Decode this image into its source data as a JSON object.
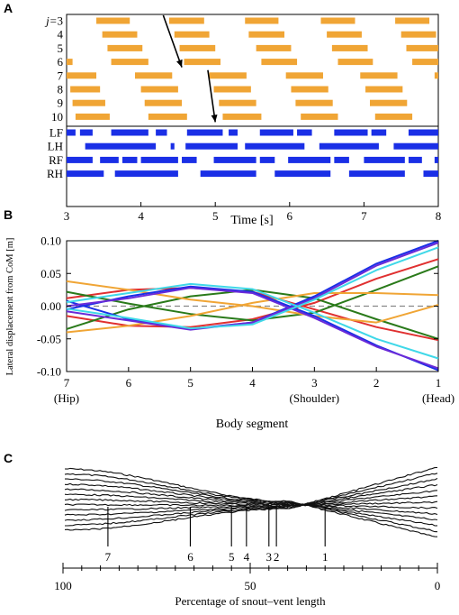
{
  "panel_labels": {
    "a": "A",
    "b": "B",
    "c": "C"
  },
  "chart_data": [
    {
      "type": "gait-diagram",
      "panel": "A",
      "xlabel": "Time [s]",
      "xlim": [
        3,
        8
      ],
      "xticks": [
        "3",
        "4",
        "5",
        "6",
        "7",
        "8"
      ],
      "segment_label_prefix": "j=",
      "segment_rows": [
        "3",
        "4",
        "5",
        "6",
        "7",
        "8",
        "9",
        "10"
      ],
      "segment_color": "#f0a535",
      "segments": [
        {
          "row": "3",
          "bars": [
            [
              3.4,
              3.85
            ],
            [
              4.38,
              4.85
            ],
            [
              5.4,
              5.85
            ],
            [
              6.42,
              6.88
            ],
            [
              7.42,
              7.88
            ]
          ]
        },
        {
          "row": "4",
          "bars": [
            [
              3.48,
              3.95
            ],
            [
              4.45,
              4.92
            ],
            [
              5.45,
              5.93
            ],
            [
              6.5,
              6.97
            ],
            [
              7.5,
              7.97
            ]
          ]
        },
        {
          "row": "5",
          "bars": [
            [
              3.55,
              4.02
            ],
            [
              4.52,
              5.0
            ],
            [
              5.55,
              6.02
            ],
            [
              6.57,
              7.05
            ],
            [
              7.57,
              8.0
            ]
          ]
        },
        {
          "row": "6",
          "bars": [
            [
              3.0,
              3.08
            ],
            [
              3.6,
              4.1
            ],
            [
              4.58,
              5.07
            ],
            [
              5.62,
              6.1
            ],
            [
              6.65,
              7.12
            ],
            [
              7.65,
              8.0
            ]
          ]
        },
        {
          "row": "7",
          "bars": [
            [
              3.0,
              3.4
            ],
            [
              3.92,
              4.42
            ],
            [
              4.92,
              5.42
            ],
            [
              5.95,
              6.45
            ],
            [
              6.95,
              7.45
            ],
            [
              7.95,
              8.0
            ]
          ]
        },
        {
          "row": "8",
          "bars": [
            [
              3.05,
              3.45
            ],
            [
              4.0,
              4.5
            ],
            [
              4.98,
              5.48
            ],
            [
              6.02,
              6.52
            ],
            [
              7.02,
              7.52
            ]
          ]
        },
        {
          "row": "9",
          "bars": [
            [
              3.08,
              3.52
            ],
            [
              4.05,
              4.55
            ],
            [
              5.05,
              5.55
            ],
            [
              6.08,
              6.58
            ],
            [
              7.08,
              7.58
            ]
          ]
        },
        {
          "row": "10",
          "bars": [
            [
              3.12,
              3.58
            ],
            [
              4.1,
              4.62
            ],
            [
              5.1,
              5.62
            ],
            [
              6.15,
              6.65
            ],
            [
              7.15,
              7.65
            ]
          ]
        }
      ],
      "leg_rows": [
        "LF",
        "LH",
        "RF",
        "RH"
      ],
      "leg_color": "#1a2fe6",
      "legs": [
        {
          "row": "LF",
          "bars": [
            [
              3.0,
              3.12
            ],
            [
              3.18,
              3.35
            ],
            [
              3.6,
              4.1
            ],
            [
              4.2,
              4.35
            ],
            [
              4.62,
              5.1
            ],
            [
              5.18,
              5.3
            ],
            [
              5.6,
              6.05
            ],
            [
              6.1,
              6.3
            ],
            [
              6.6,
              7.05
            ],
            [
              7.1,
              7.3
            ],
            [
              7.6,
              8.0
            ]
          ]
        },
        {
          "row": "LH",
          "bars": [
            [
              3.25,
              4.2
            ],
            [
              4.4,
              4.45
            ],
            [
              4.6,
              5.3
            ],
            [
              5.4,
              6.2
            ],
            [
              6.4,
              7.2
            ],
            [
              7.4,
              8.0
            ]
          ]
        },
        {
          "row": "RF",
          "bars": [
            [
              3.0,
              3.35
            ],
            [
              3.45,
              3.7
            ],
            [
              3.75,
              3.95
            ],
            [
              4.0,
              4.5
            ],
            [
              4.55,
              4.75
            ],
            [
              4.98,
              5.55
            ],
            [
              5.6,
              5.8
            ],
            [
              5.98,
              6.55
            ],
            [
              6.6,
              6.8
            ],
            [
              7.0,
              7.55
            ],
            [
              7.6,
              7.78
            ],
            [
              7.95,
              8.0
            ]
          ]
        },
        {
          "row": "RH",
          "bars": [
            [
              3.0,
              3.5
            ],
            [
              3.65,
              4.5
            ],
            [
              4.8,
              5.55
            ],
            [
              5.8,
              6.55
            ],
            [
              6.8,
              7.55
            ],
            [
              7.8,
              8.0
            ]
          ]
        }
      ],
      "arrows": [
        {
          "from": [
            4.3,
            "3"
          ],
          "to": [
            4.55,
            "6"
          ]
        },
        {
          "from": [
            4.9,
            "7"
          ],
          "to": [
            5.0,
            "10"
          ]
        }
      ]
    },
    {
      "type": "line",
      "panel": "B",
      "ylabel": "Lateral displacement from CoM [m]",
      "xlabel": "Body segment",
      "x": [
        7,
        6,
        5,
        4,
        3,
        2,
        1
      ],
      "xlim": [
        7,
        1
      ],
      "ylim": [
        -0.1,
        0.1
      ],
      "yticks": [
        "0.10",
        "0.05",
        "0.00",
        "-0.05",
        "-0.10"
      ],
      "ytick_values": [
        0.1,
        0.05,
        0.0,
        -0.05,
        -0.1
      ],
      "xticks": [
        "7",
        "6",
        "5",
        "4",
        "3",
        "2",
        "1"
      ],
      "xtick_sublabels": {
        "7": "(Hip)",
        "3": "(Shoulder)",
        "1": "(Head)"
      },
      "zero_line": "dashed",
      "series": [
        {
          "color": "#e03030",
          "values": [
            0.012,
            0.025,
            0.028,
            0.022,
            -0.005,
            -0.032,
            -0.052
          ]
        },
        {
          "color": "#e03030",
          "values": [
            -0.015,
            -0.03,
            -0.032,
            -0.02,
            0.005,
            0.042,
            0.072
          ]
        },
        {
          "color": "#2a7a1a",
          "values": [
            -0.035,
            -0.005,
            0.015,
            0.025,
            0.012,
            -0.02,
            -0.05
          ]
        },
        {
          "color": "#2a7a1a",
          "values": [
            0.022,
            0.004,
            -0.012,
            -0.022,
            -0.01,
            0.025,
            0.061
          ]
        },
        {
          "color": "#f0a535",
          "values": [
            0.038,
            0.025,
            0.01,
            0.0,
            -0.015,
            -0.025,
            0.002
          ]
        },
        {
          "color": "#f0a535",
          "values": [
            -0.04,
            -0.03,
            -0.015,
            0.005,
            0.02,
            0.02,
            0.017
          ]
        },
        {
          "color": "#1a2fe6",
          "values": [
            0.008,
            -0.02,
            -0.035,
            -0.025,
            0.015,
            0.065,
            0.1
          ]
        },
        {
          "color": "#1a2fe6",
          "values": [
            -0.005,
            0.015,
            0.03,
            0.022,
            -0.015,
            -0.06,
            -0.098
          ]
        },
        {
          "color": "#6a2ad8",
          "values": [
            -0.008,
            -0.022,
            -0.036,
            -0.025,
            0.012,
            0.062,
            0.097
          ]
        },
        {
          "color": "#6a2ad8",
          "values": [
            0.0,
            0.012,
            0.028,
            0.02,
            -0.018,
            -0.062,
            -0.095
          ]
        },
        {
          "color": "#3fd8e8",
          "values": [
            0.006,
            0.02,
            0.034,
            0.026,
            -0.01,
            -0.05,
            -0.08
          ]
        },
        {
          "color": "#3fd8e8",
          "values": [
            -0.004,
            -0.018,
            -0.034,
            -0.028,
            0.01,
            0.055,
            0.09
          ]
        }
      ]
    },
    {
      "type": "traced-outlines",
      "panel": "C",
      "xlabel": "Percentage of snout–vent length",
      "xlim": [
        100,
        0
      ],
      "xticks": [
        "100",
        "50",
        "0"
      ],
      "xtick_values": [
        100,
        50,
        0
      ],
      "segment_markers": [
        "7",
        "6",
        "5",
        "4",
        "3",
        "2",
        "1"
      ],
      "segment_marker_positions": [
        88,
        66,
        55,
        51,
        45,
        43,
        30
      ],
      "outline_count": 13
    }
  ]
}
